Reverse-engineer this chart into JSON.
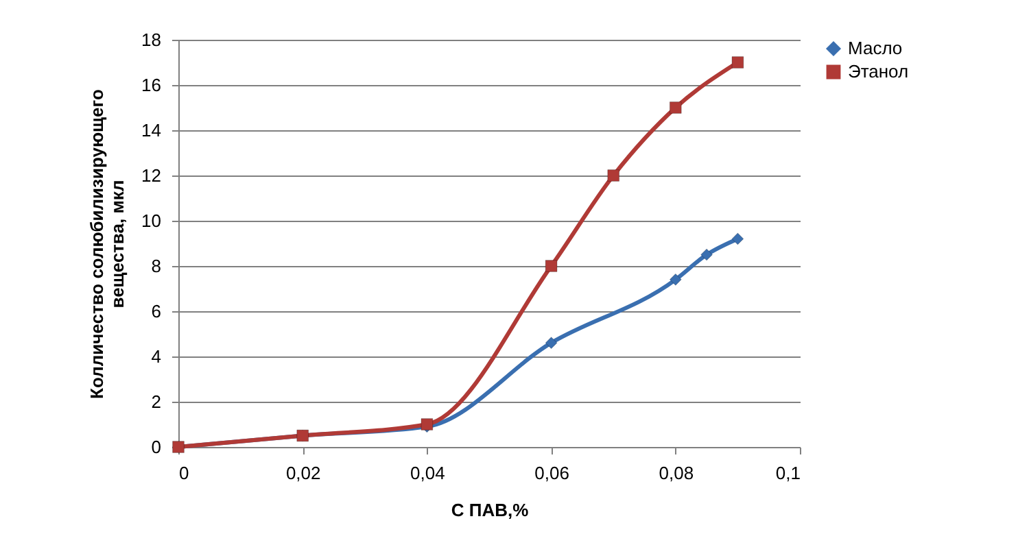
{
  "chart_data": {
    "type": "line",
    "xlabel": "С ПАВ,%",
    "ylabel": "Колличество солюбилизирующего вещества, мкл",
    "xlim": [
      0,
      0.1
    ],
    "xticks": [
      0,
      {
        "value": 0.02,
        "label": "0,02"
      },
      {
        "value": 0.04,
        "label": "0,04"
      },
      {
        "value": 0.06,
        "label": "0,06"
      },
      {
        "value": 0.08,
        "label": "0,08"
      },
      {
        "value": 0.1,
        "label": "0,1"
      }
    ],
    "ylim": [
      0,
      18
    ],
    "yticks": [
      0,
      2,
      4,
      6,
      8,
      10,
      12,
      14,
      16,
      18
    ],
    "grid": "y",
    "legend": "right",
    "line_style": "solid",
    "series": [
      {
        "name": "Масло",
        "color": "#3a6fb0",
        "marker": "diamond",
        "x": [
          0,
          0.02,
          0.04,
          0.06,
          0.08,
          0.085,
          0.09
        ],
        "values": [
          0,
          0.5,
          0.9,
          4.6,
          7.4,
          8.5,
          9.2
        ]
      },
      {
        "name": "Этанол",
        "color": "#b03a36",
        "marker": "square",
        "x": [
          0,
          0.02,
          0.04,
          0.06,
          0.07,
          0.08,
          0.09
        ],
        "values": [
          0,
          0.5,
          1,
          8,
          12,
          15,
          17
        ]
      }
    ]
  }
}
